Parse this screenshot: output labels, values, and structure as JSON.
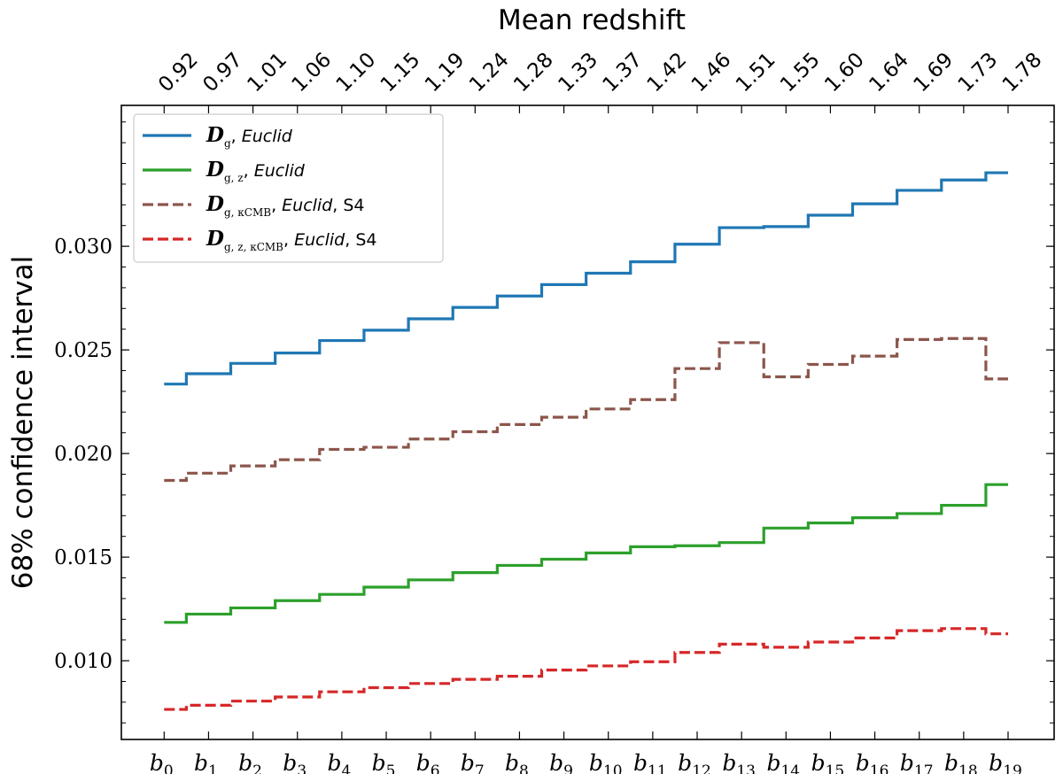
{
  "chart_data": {
    "type": "line",
    "step": true,
    "title": "",
    "xlabel": "",
    "ylabel": "68% confidence interval",
    "top_xlabel": "Mean redshift",
    "ylim": [
      0.0062,
      0.0368
    ],
    "y_ticks": [
      0.01,
      0.015,
      0.02,
      0.025,
      0.03
    ],
    "y_tick_labels": [
      "0.010",
      "0.015",
      "0.020",
      "0.025",
      "0.030"
    ],
    "categories": [
      "b0",
      "b1",
      "b2",
      "b3",
      "b4",
      "b5",
      "b6",
      "b7",
      "b8",
      "b9",
      "b10",
      "b11",
      "b12",
      "b13",
      "b14",
      "b15",
      "b16",
      "b17",
      "b18",
      "b19"
    ],
    "category_base": "b",
    "category_subs": [
      "0",
      "1",
      "2",
      "3",
      "4",
      "5",
      "6",
      "7",
      "8",
      "9",
      "10",
      "11",
      "12",
      "13",
      "14",
      "15",
      "16",
      "17",
      "18",
      "19"
    ],
    "top_tick_labels": [
      "0.92",
      "0.97",
      "1.01",
      "1.06",
      "1.10",
      "1.15",
      "1.19",
      "1.24",
      "1.28",
      "1.33",
      "1.37",
      "1.42",
      "1.46",
      "1.51",
      "1.55",
      "1.60",
      "1.64",
      "1.69",
      "1.73",
      "1.78"
    ],
    "legend_position": "top-left",
    "series": [
      {
        "name": "D_g, Euclid",
        "legend": {
          "sym": "D",
          "sub": "g",
          "text": ", ",
          "italic": "Euclid",
          "extra": ""
        },
        "color": "#1f77b4",
        "dashed": false,
        "values": [
          0.02335,
          0.02385,
          0.02435,
          0.02485,
          0.02545,
          0.02595,
          0.0265,
          0.02705,
          0.0276,
          0.02815,
          0.0287,
          0.02925,
          0.0301,
          0.0309,
          0.03095,
          0.0315,
          0.03205,
          0.0327,
          0.0332,
          0.03355
        ]
      },
      {
        "name": "D_g,z, Euclid",
        "legend": {
          "sym": "D",
          "sub": "g, z",
          "text": ", ",
          "italic": "Euclid",
          "extra": ""
        },
        "color": "#2ca02c",
        "dashed": false,
        "values": [
          0.01185,
          0.01225,
          0.01255,
          0.0129,
          0.0132,
          0.01355,
          0.0139,
          0.01425,
          0.0146,
          0.0149,
          0.0152,
          0.0155,
          0.01555,
          0.0157,
          0.0164,
          0.01665,
          0.0169,
          0.0171,
          0.0175,
          0.0185
        ]
      },
      {
        "name": "D_g,κCMB, Euclid, S4",
        "legend": {
          "sym": "D",
          "sub": "g, κCMB",
          "text": ", ",
          "italic": "Euclid",
          "extra": ", S4"
        },
        "color": "#8c564b",
        "dashed": true,
        "values": [
          0.0187,
          0.01905,
          0.0194,
          0.0197,
          0.0202,
          0.0203,
          0.0207,
          0.02105,
          0.0214,
          0.02175,
          0.02215,
          0.0226,
          0.0241,
          0.02535,
          0.0237,
          0.0243,
          0.0247,
          0.0255,
          0.02555,
          0.0236
        ]
      },
      {
        "name": "D_g,z,κCMB, Euclid, S4",
        "legend": {
          "sym": "D",
          "sub": "g, z, κCMB",
          "text": ", ",
          "italic": "Euclid",
          "extra": ", S4"
        },
        "color": "#d62728",
        "dashed": true,
        "values": [
          0.00765,
          0.00785,
          0.00805,
          0.00825,
          0.0085,
          0.0087,
          0.0089,
          0.0091,
          0.00925,
          0.00955,
          0.00975,
          0.00995,
          0.0104,
          0.0108,
          0.01065,
          0.0109,
          0.0111,
          0.01145,
          0.01155,
          0.0113
        ]
      }
    ]
  }
}
